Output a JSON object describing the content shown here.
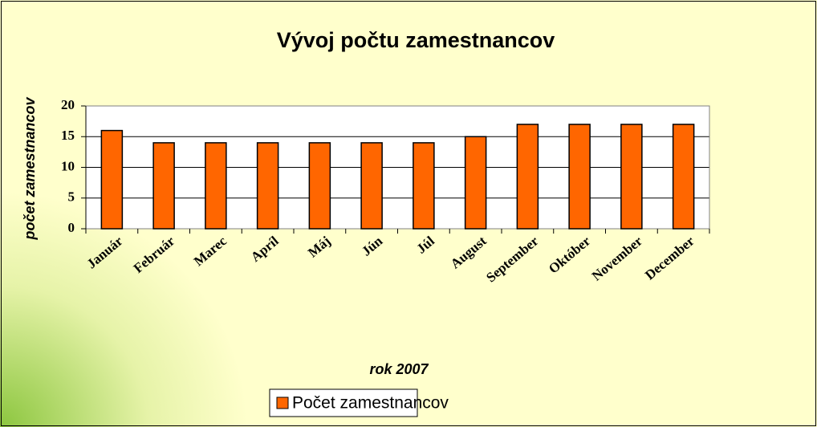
{
  "chart_data": {
    "type": "bar",
    "title": "Vývoj počtu zamestnancov",
    "x_label": "rok 2007",
    "y_label": "počet zamestnancov",
    "categories": [
      "Január",
      "Február",
      "Marec",
      "Apríl",
      "Máj",
      "Jún",
      "Júl",
      "August",
      "September",
      "Október",
      "November",
      "December"
    ],
    "series": [
      {
        "name": "Počet zamestnancov",
        "color": "#ff6600",
        "values": [
          16,
          14,
          14,
          14,
          14,
          14,
          14,
          15,
          17,
          17,
          17,
          17
        ]
      }
    ],
    "ylim": [
      0,
      20
    ],
    "yticks": [
      0,
      5,
      10,
      15,
      20
    ],
    "grid": true,
    "legend": "bottom"
  }
}
